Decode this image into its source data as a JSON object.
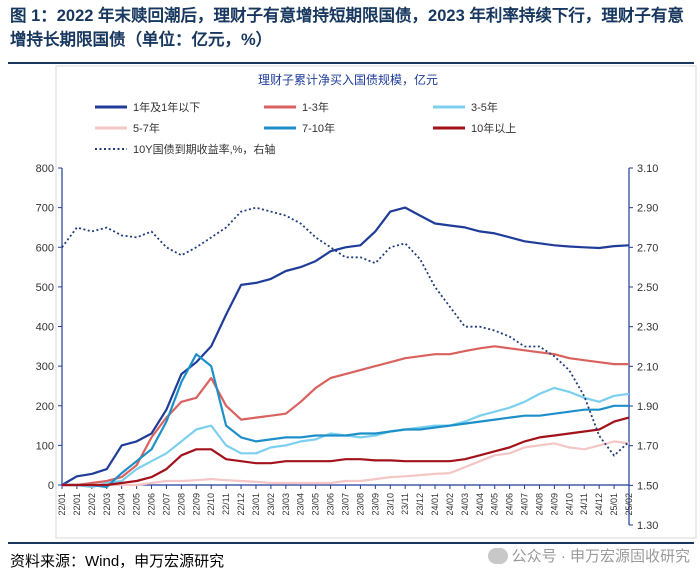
{
  "header": {
    "title": "图 1：2022 年末赎回潮后，理财子有意增持短期限国债，2023 年利率持续下行，理财子有意增持长期限国债（单位：亿元，%）"
  },
  "footer": {
    "source": "资料来源：Wind，申万宏源研究",
    "watermark": "公众号 · 申万宏源固收研究"
  },
  "chart_data": {
    "type": "line",
    "title": "理财子累计净买入国债规模，亿元",
    "ylim": [
      0,
      800
    ],
    "y_ticks": [
      "0",
      "100",
      "200",
      "300",
      "400",
      "500",
      "600",
      "700",
      "800"
    ],
    "y2lim": [
      1.3,
      3.1
    ],
    "y2_ticks": [
      "1.30",
      "1.50",
      "1.70",
      "1.90",
      "2.10",
      "2.30",
      "2.50",
      "2.70",
      "2.90",
      "3.10"
    ],
    "x_ticks": [
      "22/01",
      "22/01",
      "22/02",
      "22/03",
      "22/04",
      "22/05",
      "22/06",
      "22/07",
      "22/08",
      "22/09",
      "22/10",
      "22/11",
      "22/12",
      "23/01",
      "23/02",
      "23/03",
      "23/04",
      "23/05",
      "23/06",
      "23/07",
      "23/08",
      "23/09",
      "23/10",
      "23/11",
      "23/12",
      "24/01",
      "24/02",
      "24/03",
      "24/04",
      "24/05",
      "24/06",
      "24/07",
      "24/08",
      "24/09",
      "24/10",
      "24/11",
      "24/12",
      "25/01",
      "25/02"
    ],
    "series": [
      {
        "name": "1年及1年以下",
        "axis": "left",
        "color": "#1f3c99",
        "values": [
          0,
          22,
          28,
          40,
          100,
          110,
          130,
          190,
          280,
          310,
          350,
          430,
          505,
          510,
          520,
          540,
          550,
          565,
          590,
          600,
          605,
          640,
          690,
          700,
          680,
          660,
          655,
          650,
          640,
          635,
          625,
          615,
          610,
          605,
          602,
          600,
          598,
          603,
          605
        ]
      },
      {
        "name": "1-3年",
        "axis": "left",
        "color": "#d9625f",
        "values": [
          0,
          0,
          5,
          10,
          20,
          50,
          120,
          170,
          210,
          220,
          270,
          200,
          165,
          170,
          175,
          180,
          210,
          245,
          270,
          280,
          290,
          300,
          310,
          320,
          325,
          330,
          330,
          338,
          345,
          350,
          345,
          340,
          335,
          330,
          320,
          315,
          310,
          305,
          305
        ]
      },
      {
        "name": "3-5年",
        "axis": "left",
        "color": "#7ccfef",
        "values": [
          0,
          0,
          -5,
          5,
          10,
          40,
          60,
          80,
          110,
          140,
          150,
          100,
          80,
          80,
          95,
          100,
          110,
          115,
          130,
          125,
          120,
          125,
          135,
          140,
          145,
          150,
          150,
          160,
          175,
          185,
          195,
          210,
          230,
          245,
          235,
          220,
          210,
          225,
          230
        ]
      },
      {
        "name": "5-7年",
        "axis": "left",
        "color": "#f4c6c6",
        "values": [
          0,
          0,
          0,
          0,
          0,
          0,
          5,
          10,
          10,
          12,
          15,
          12,
          10,
          8,
          5,
          5,
          5,
          5,
          5,
          10,
          10,
          15,
          20,
          22,
          25,
          28,
          30,
          45,
          60,
          75,
          80,
          95,
          100,
          105,
          95,
          90,
          100,
          110,
          105
        ]
      },
      {
        "name": "7-10年",
        "axis": "left",
        "color": "#1e90c9",
        "values": [
          0,
          0,
          0,
          -5,
          30,
          60,
          90,
          160,
          260,
          330,
          300,
          150,
          120,
          110,
          115,
          120,
          120,
          125,
          125,
          125,
          130,
          130,
          135,
          140,
          140,
          145,
          150,
          155,
          160,
          165,
          170,
          175,
          175,
          180,
          185,
          190,
          190,
          200,
          200
        ]
      },
      {
        "name": "10年以上",
        "axis": "left",
        "color": "#a3111a",
        "values": [
          0,
          0,
          0,
          0,
          5,
          10,
          20,
          40,
          75,
          90,
          90,
          65,
          60,
          55,
          55,
          60,
          60,
          60,
          60,
          65,
          65,
          62,
          62,
          60,
          60,
          60,
          60,
          65,
          75,
          85,
          95,
          110,
          120,
          125,
          130,
          135,
          140,
          160,
          170
        ]
      },
      {
        "name": "10Y国债到期收益率,%，右轴",
        "axis": "right",
        "color": "#1f3c7a",
        "dashed": true,
        "values": [
          2.7,
          2.8,
          2.78,
          2.8,
          2.76,
          2.75,
          2.78,
          2.7,
          2.66,
          2.7,
          2.75,
          2.8,
          2.88,
          2.9,
          2.88,
          2.86,
          2.82,
          2.75,
          2.7,
          2.65,
          2.65,
          2.62,
          2.7,
          2.72,
          2.64,
          2.5,
          2.4,
          2.3,
          2.3,
          2.28,
          2.25,
          2.2,
          2.2,
          2.15,
          2.08,
          1.95,
          1.75,
          1.65,
          1.72
        ]
      }
    ]
  }
}
